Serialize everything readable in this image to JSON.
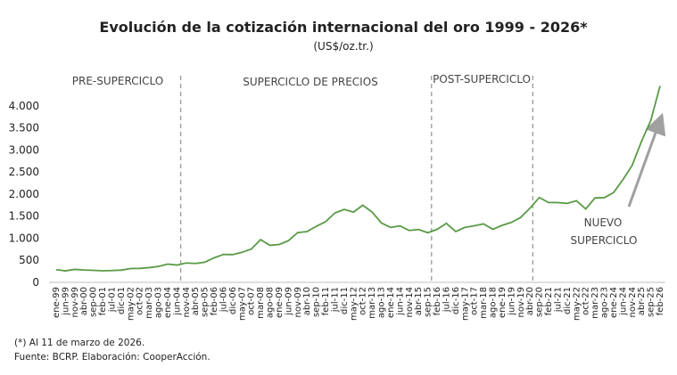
{
  "chart_data": {
    "type": "line",
    "title": "Evolución de la cotización internacional del oro 1999 - 2026*",
    "subtitle": "(US$/oz.tr.)",
    "categories": [
      "ene-99",
      "jun-99",
      "nov-99",
      "abr-00",
      "sep-00",
      "feb-01",
      "jul-01",
      "dic-01",
      "may-02",
      "oct-02",
      "mar-03",
      "ago-03",
      "ene-04",
      "jun-04",
      "nov-04",
      "abr-05",
      "sep-05",
      "feb-06",
      "jul-06",
      "dic-06",
      "may-07",
      "oct-07",
      "mar-08",
      "ago-08",
      "ene-09",
      "jun-09",
      "nov-09",
      "abr-10",
      "sep-10",
      "feb-11",
      "jul-11",
      "dic-11",
      "may-12",
      "oct-12",
      "mar-13",
      "ago-13",
      "ene-14",
      "jun-14",
      "nov-14",
      "abr-15",
      "sep-15",
      "feb-16",
      "jul-16",
      "dic-16",
      "may-17",
      "oct-17",
      "mar-18",
      "ago-18",
      "ene-19",
      "jun-19",
      "nov-19",
      "abr-20",
      "sep-20",
      "feb-21",
      "jul-21",
      "dic-21",
      "may-22",
      "oct-22",
      "mar-23",
      "ago-23",
      "ene-24",
      "jun-24",
      "nov-24",
      "abr-25",
      "sep-25",
      "feb-26"
    ],
    "series": [
      {
        "name": "Oro",
        "color": "#5a9a46",
        "values": [
          287,
          261,
          294,
          280,
          273,
          262,
          268,
          276,
          313,
          317,
          334,
          360,
          413,
          392,
          439,
          429,
          457,
          555,
          633,
          629,
          680,
          754,
          968,
          839,
          858,
          945,
          1128,
          1149,
          1271,
          1374,
          1572,
          1652,
          1591,
          1747,
          1593,
          1347,
          1244,
          1279,
          1176,
          1198,
          1125,
          1200,
          1337,
          1151,
          1246,
          1281,
          1325,
          1202,
          1292,
          1359,
          1471,
          1681,
          1922,
          1808,
          1807,
          1789,
          1849,
          1664,
          1913,
          1918,
          2034,
          2326,
          2651,
          3193,
          3665,
          4450
        ]
      }
    ],
    "ylim": [
      0,
      4500
    ],
    "yticks": [
      0,
      {
        "value": 500,
        "label": "500"
      },
      {
        "value": 1000,
        "label": "1.000"
      },
      {
        "value": 1500,
        "label": "1.500"
      },
      {
        "value": 2000,
        "label": "2.000"
      },
      {
        "value": 2500,
        "label": "2.500"
      },
      {
        "value": 3000,
        "label": "3.000"
      },
      {
        "value": 3500,
        "label": "3.500"
      },
      {
        "value": 4000,
        "label": "4.000"
      }
    ],
    "regions": [
      "PRE-SUPERCICLO",
      "SUPERCICLO DE PRECIOS",
      "POST-SUPERCICLO"
    ],
    "annotation": [
      "NUEVO",
      "SUPERCICLO"
    ],
    "notes": [
      "(*) Al 11 de marzo de 2026.",
      "Fuente: BCRP. Elaboración: CooperAcción."
    ]
  }
}
